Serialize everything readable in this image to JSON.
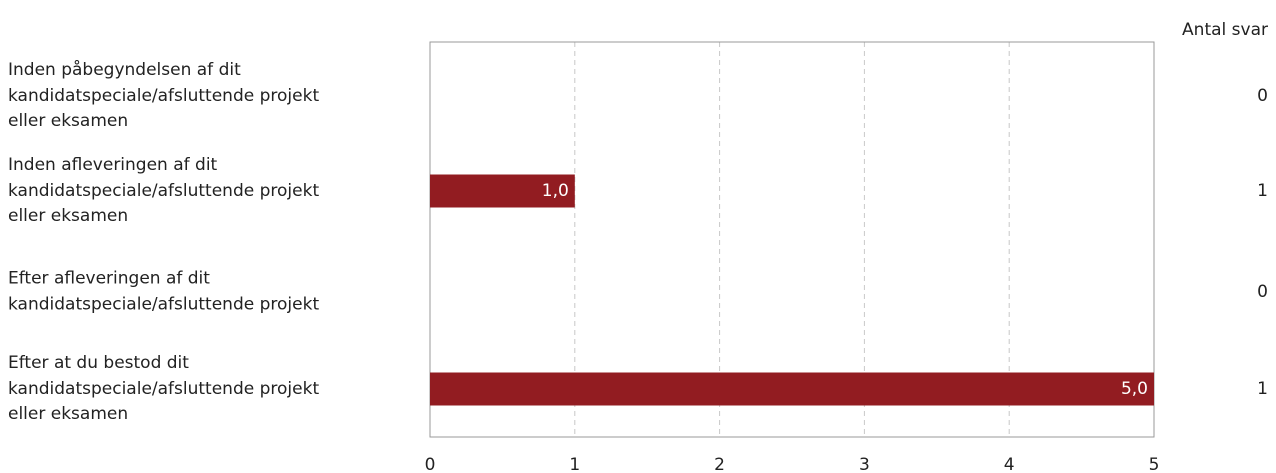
{
  "chart_data": {
    "type": "bar",
    "orientation": "horizontal",
    "categories": [
      "Inden påbegyndelsen af dit\nkandidatspeciale/afsluttende projekt\neller eksamen",
      "Inden afleveringen af dit\nkandidatspeciale/afsluttende projekt\neller eksamen",
      "Efter afleveringen af dit\nkandidatspeciale/afsluttende projekt",
      "Efter at du bestod dit\nkandidatspeciale/afsluttende projekt\neller eksamen"
    ],
    "values": [
      0,
      1,
      0,
      5
    ],
    "value_labels": [
      null,
      "1,0",
      null,
      "5,0"
    ],
    "color": "#921c21",
    "xlim": [
      0,
      5
    ],
    "xticks": [
      0,
      1,
      2,
      3,
      4,
      5
    ],
    "grid": true,
    "count_header": "Antal svar",
    "counts": [
      0,
      1,
      0,
      1
    ]
  }
}
